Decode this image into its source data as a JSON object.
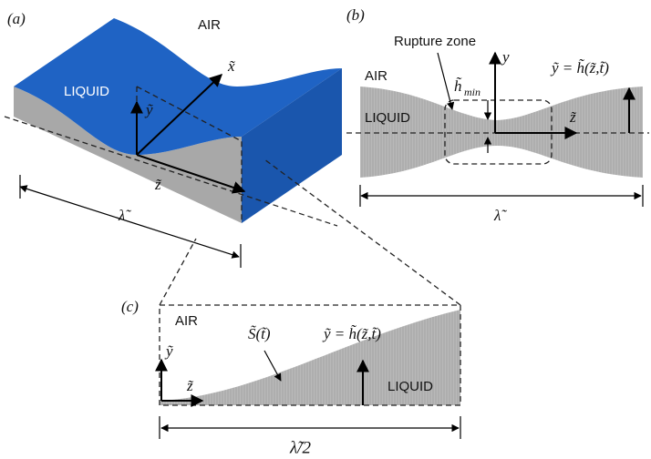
{
  "panel_a": {
    "label": "(a)",
    "air": "AIR",
    "liquid": "LIQUID",
    "x": "x̃",
    "y": "ỹ",
    "z": "z̃",
    "wavelength": "λ̃"
  },
  "panel_b": {
    "label": "(b)",
    "rupture": "Rupture zone",
    "y": "y",
    "h_eq": "ỹ = h̃(z̃,t̃)",
    "air": "AIR",
    "liquid": "LIQUID",
    "hmin": "h̃",
    "hmin_sub": "min",
    "z": "z̃",
    "wavelength": "λ̃"
  },
  "panel_c": {
    "label": "(c)",
    "air": "AIR",
    "surface": "S̃(t̃)",
    "h_eq": "ỹ = h̃(z̃,t̃)",
    "y": "ỹ",
    "z": "z̃",
    "liquid": "LIQUID",
    "half_wavelength": "λ̃/2"
  }
}
